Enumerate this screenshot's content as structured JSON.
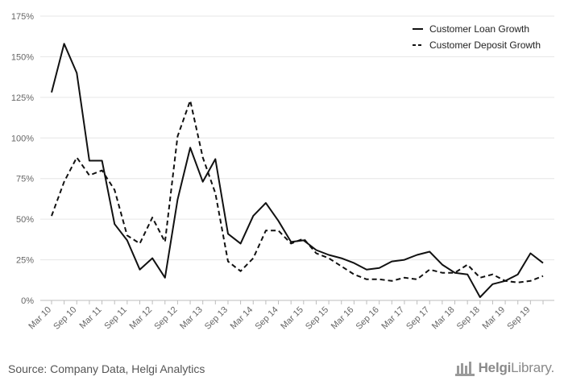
{
  "chart_data": {
    "type": "line",
    "x": [
      "Mar 10",
      "Jun 10",
      "Sep 10",
      "Dec 10",
      "Mar 11",
      "Jun 11",
      "Sep 11",
      "Dec 11",
      "Mar 12",
      "Jun 12",
      "Sep 12",
      "Dec 12",
      "Mar 13",
      "Jun 13",
      "Sep 13",
      "Dec 13",
      "Mar 14",
      "Jun 14",
      "Sep 14",
      "Dec 14",
      "Mar 15",
      "Jun 15",
      "Sep 15",
      "Dec 15",
      "Mar 16",
      "Jun 16",
      "Sep 16",
      "Dec 16",
      "Mar 17",
      "Jun 17",
      "Sep 17",
      "Dec 17",
      "Mar 18",
      "Jun 18",
      "Sep 18",
      "Dec 18",
      "Mar 19",
      "Jun 19",
      "Sep 19",
      "Dec 19"
    ],
    "tick_labels": [
      "Mar 10",
      "Sep 10",
      "Mar 11",
      "Sep 11",
      "Mar 12",
      "Sep 12",
      "Mar 13",
      "Sep 13",
      "Mar 14",
      "Sep 14",
      "Mar 15",
      "Sep 15",
      "Mar 16",
      "Sep 16",
      "Mar 17",
      "Sep 17",
      "Mar 18",
      "Sep 18",
      "Mar 19",
      "Sep 19"
    ],
    "series": [
      {
        "name": "Customer Loan Growth",
        "style": "solid",
        "values": [
          128,
          158,
          140,
          86,
          86,
          47,
          37,
          19,
          26,
          14,
          62,
          94,
          73,
          87,
          41,
          35,
          52,
          60,
          49,
          36,
          37,
          31,
          28,
          26,
          23,
          19,
          20,
          24,
          25,
          28,
          30,
          22,
          17,
          16,
          2,
          10,
          12,
          16,
          29,
          23
        ]
      },
      {
        "name": "Customer Deposit Growth",
        "style": "dashed",
        "values": [
          52,
          73,
          88,
          77,
          80,
          68,
          40,
          35,
          51,
          36,
          101,
          123,
          88,
          66,
          24,
          18,
          26,
          43,
          43,
          35,
          38,
          29,
          26,
          21,
          16,
          13,
          13,
          12,
          14,
          13,
          19,
          17,
          17,
          22,
          14,
          16,
          12,
          11,
          12,
          15
        ]
      }
    ],
    "yticks": [
      "0%",
      "25%",
      "50%",
      "75%",
      "100%",
      "125%",
      "150%",
      "175%"
    ],
    "ylim": [
      0,
      175
    ],
    "grid": true,
    "legend_position": "top-right"
  },
  "footer": {
    "source": "Source: Company Data, Helgi Analytics",
    "logo_bold": "Helgi",
    "logo_light": "Library."
  },
  "colors": {
    "line": "#111111",
    "grid": "#e6e6e6",
    "axis_text": "#666666"
  }
}
